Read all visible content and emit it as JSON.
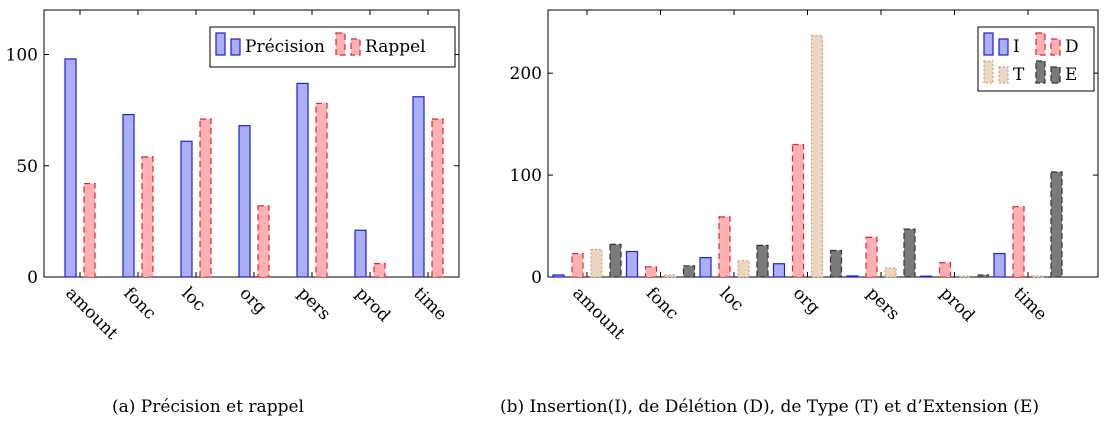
{
  "charts": [
    {
      "type": "bar",
      "caption": "(a) Précision et rappel",
      "categories": [
        "amount",
        "fonc",
        "loc",
        "org",
        "pers",
        "prod",
        "time"
      ],
      "ylim": [
        0,
        120
      ],
      "yticks": [
        0,
        50,
        100
      ],
      "legend_position": "top-right",
      "series": [
        {
          "name": "Précision",
          "values": [
            98,
            73,
            61,
            68,
            87,
            21,
            81
          ],
          "fill": "#aab0f5",
          "stroke": "#1f1fd0",
          "dash": ""
        },
        {
          "name": "Rappel",
          "values": [
            42,
            54,
            71,
            32,
            78,
            6,
            71
          ],
          "fill": "#ffb0b0",
          "stroke": "#e0203a",
          "dash": "6,4"
        }
      ]
    },
    {
      "type": "bar",
      "caption": "(b) Insertion(I), de Délétion (D), de Type (T) et d’Extension (E)",
      "categories": [
        "amount",
        "fonc",
        "loc",
        "org",
        "pers",
        "prod",
        "time"
      ],
      "ylim": [
        0,
        262
      ],
      "yticks": [
        0,
        100,
        200
      ],
      "legend_position": "top-right",
      "series": [
        {
          "name": "I",
          "values": [
            2,
            25,
            19,
            13,
            1,
            0,
            23
          ],
          "fill": "#aab0f5",
          "stroke": "#1f1fd0",
          "dash": ""
        },
        {
          "name": "D",
          "values": [
            23,
            10,
            59,
            130,
            39,
            14,
            69
          ],
          "fill": "#ffb0b0",
          "stroke": "#e0203a",
          "dash": "6,4"
        },
        {
          "name": "T",
          "values": [
            27,
            2,
            16,
            237,
            9,
            1,
            1
          ],
          "fill": "#ecd6bf",
          "stroke": "#c8a888",
          "dash": "2,2"
        },
        {
          "name": "E",
          "values": [
            32,
            11,
            31,
            26,
            47,
            2,
            103
          ],
          "fill": "#7a7a7a",
          "stroke": "#333333",
          "dash": "6,3"
        }
      ]
    }
  ]
}
